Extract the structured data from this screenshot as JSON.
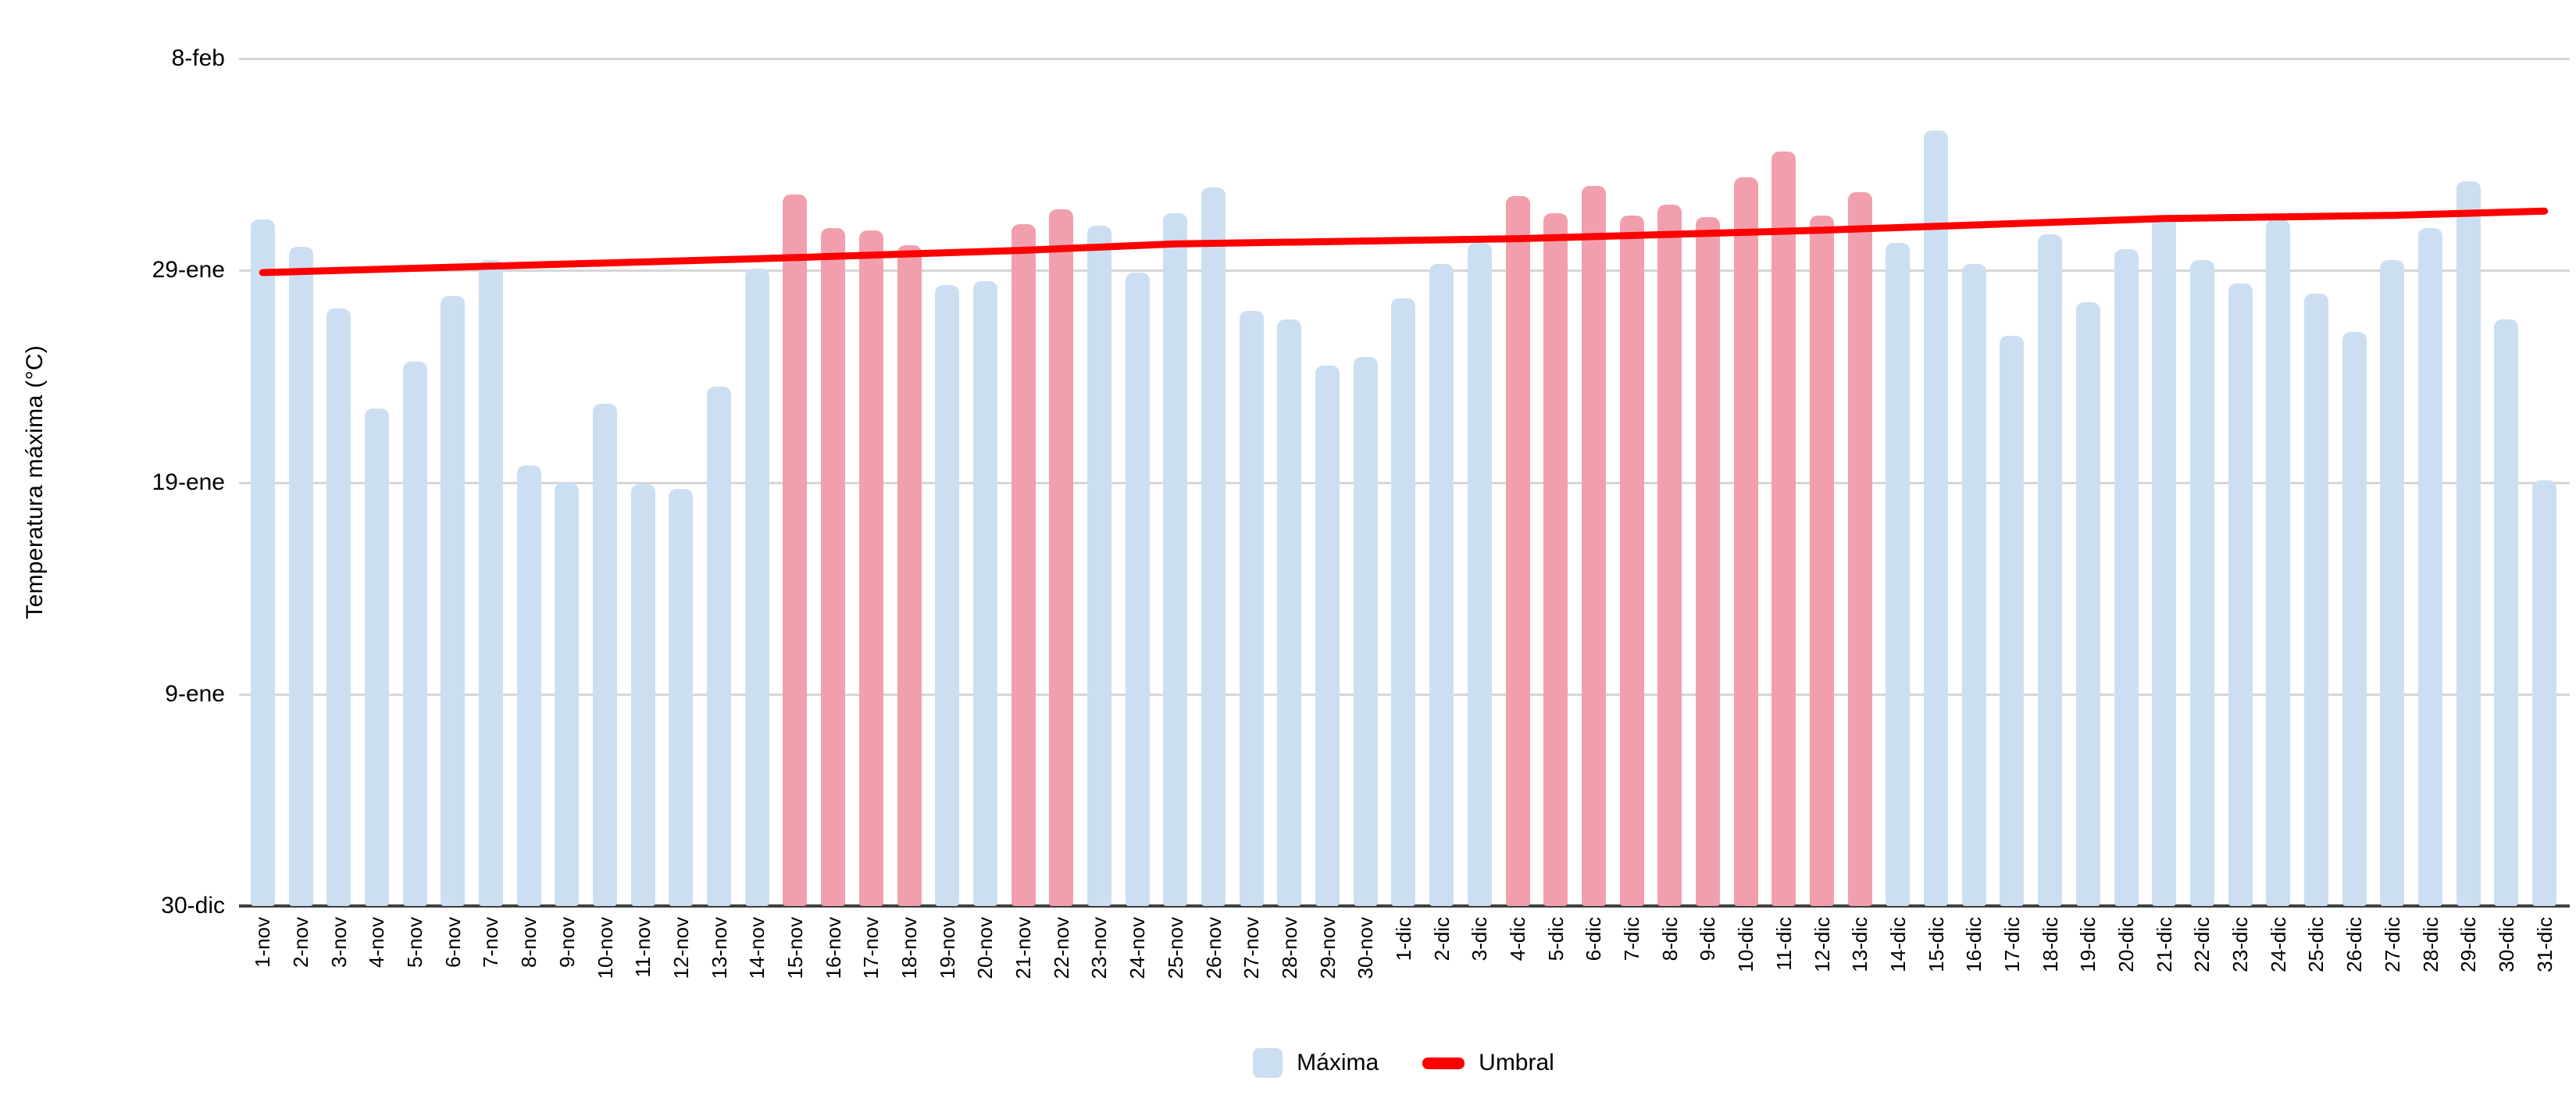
{
  "chart_data": {
    "type": "bar",
    "title": "",
    "y_axis_title": "Temperatura máxima (°C)",
    "ylim": [
      0,
      40
    ],
    "grid": true,
    "legend_position": "bottom-center",
    "y_ticks": [
      {
        "label": "8-feb",
        "value": 40
      },
      {
        "label": "29-ene",
        "value": 30
      },
      {
        "label": "19-ene",
        "value": 20
      },
      {
        "label": "9-ene",
        "value": 10
      },
      {
        "label": "30-dic",
        "value": 0
      }
    ],
    "categories": [
      "1-nov",
      "2-nov",
      "3-nov",
      "4-nov",
      "5-nov",
      "6-nov",
      "7-nov",
      "8-nov",
      "9-nov",
      "10-nov",
      "11-nov",
      "12-nov",
      "13-nov",
      "14-nov",
      "15-nov",
      "16-nov",
      "17-nov",
      "18-nov",
      "19-nov",
      "20-nov",
      "21-nov",
      "22-nov",
      "23-nov",
      "24-nov",
      "25-nov",
      "26-nov",
      "27-nov",
      "28-nov",
      "29-nov",
      "30-nov",
      "1-dic",
      "2-dic",
      "3-dic",
      "4-dic",
      "5-dic",
      "6-dic",
      "7-dic",
      "8-dic",
      "9-dic",
      "10-dic",
      "11-dic",
      "12-dic",
      "13-dic",
      "14-dic",
      "15-dic",
      "16-dic",
      "17-dic",
      "18-dic",
      "19-dic",
      "20-dic",
      "21-dic",
      "22-dic",
      "23-dic",
      "24-dic",
      "25-dic",
      "26-dic",
      "27-dic",
      "28-dic",
      "29-dic",
      "30-dic",
      "31-dic"
    ],
    "series": [
      {
        "name": "Máxima",
        "type": "bar",
        "values": [
          32.4,
          31.1,
          28.2,
          23.5,
          25.7,
          28.8,
          30.5,
          20.8,
          20.0,
          23.7,
          19.9,
          19.7,
          24.5,
          30.1,
          33.6,
          32.0,
          31.9,
          31.2,
          29.3,
          29.5,
          32.2,
          32.9,
          32.1,
          29.9,
          32.7,
          33.9,
          28.1,
          27.7,
          25.5,
          25.9,
          28.7,
          30.3,
          31.3,
          33.5,
          32.7,
          34.0,
          32.6,
          33.1,
          32.5,
          34.4,
          35.6,
          32.6,
          33.7,
          31.3,
          36.6,
          30.3,
          26.9,
          31.7,
          28.5,
          31.0,
          32.6,
          30.5,
          29.4,
          32.4,
          28.9,
          27.1,
          30.5,
          32.0,
          34.2,
          27.7,
          20.1
        ],
        "highlight_indices": [
          14,
          15,
          16,
          17,
          20,
          21,
          33,
          34,
          35,
          36,
          37,
          38,
          39,
          40,
          41,
          42
        ]
      },
      {
        "name": "Umbral",
        "type": "line",
        "points": [
          [
            0,
            29.9
          ],
          [
            6,
            30.2
          ],
          [
            13,
            30.55
          ],
          [
            20,
            30.95
          ],
          [
            24,
            31.25
          ],
          [
            33,
            31.5
          ],
          [
            41,
            31.9
          ],
          [
            50,
            32.45
          ],
          [
            56,
            32.6
          ],
          [
            60,
            32.8
          ]
        ]
      }
    ]
  },
  "legend": {
    "maxima": "Máxima",
    "umbral": "Umbral"
  },
  "colors": {
    "bar_normal": "#CCDFF2",
    "bar_highlight": "#F29FAD",
    "threshold_line": "#FF0000",
    "gridline": "#D6D6D6",
    "axis_line": "#3F3F3F",
    "text": "#000000"
  }
}
